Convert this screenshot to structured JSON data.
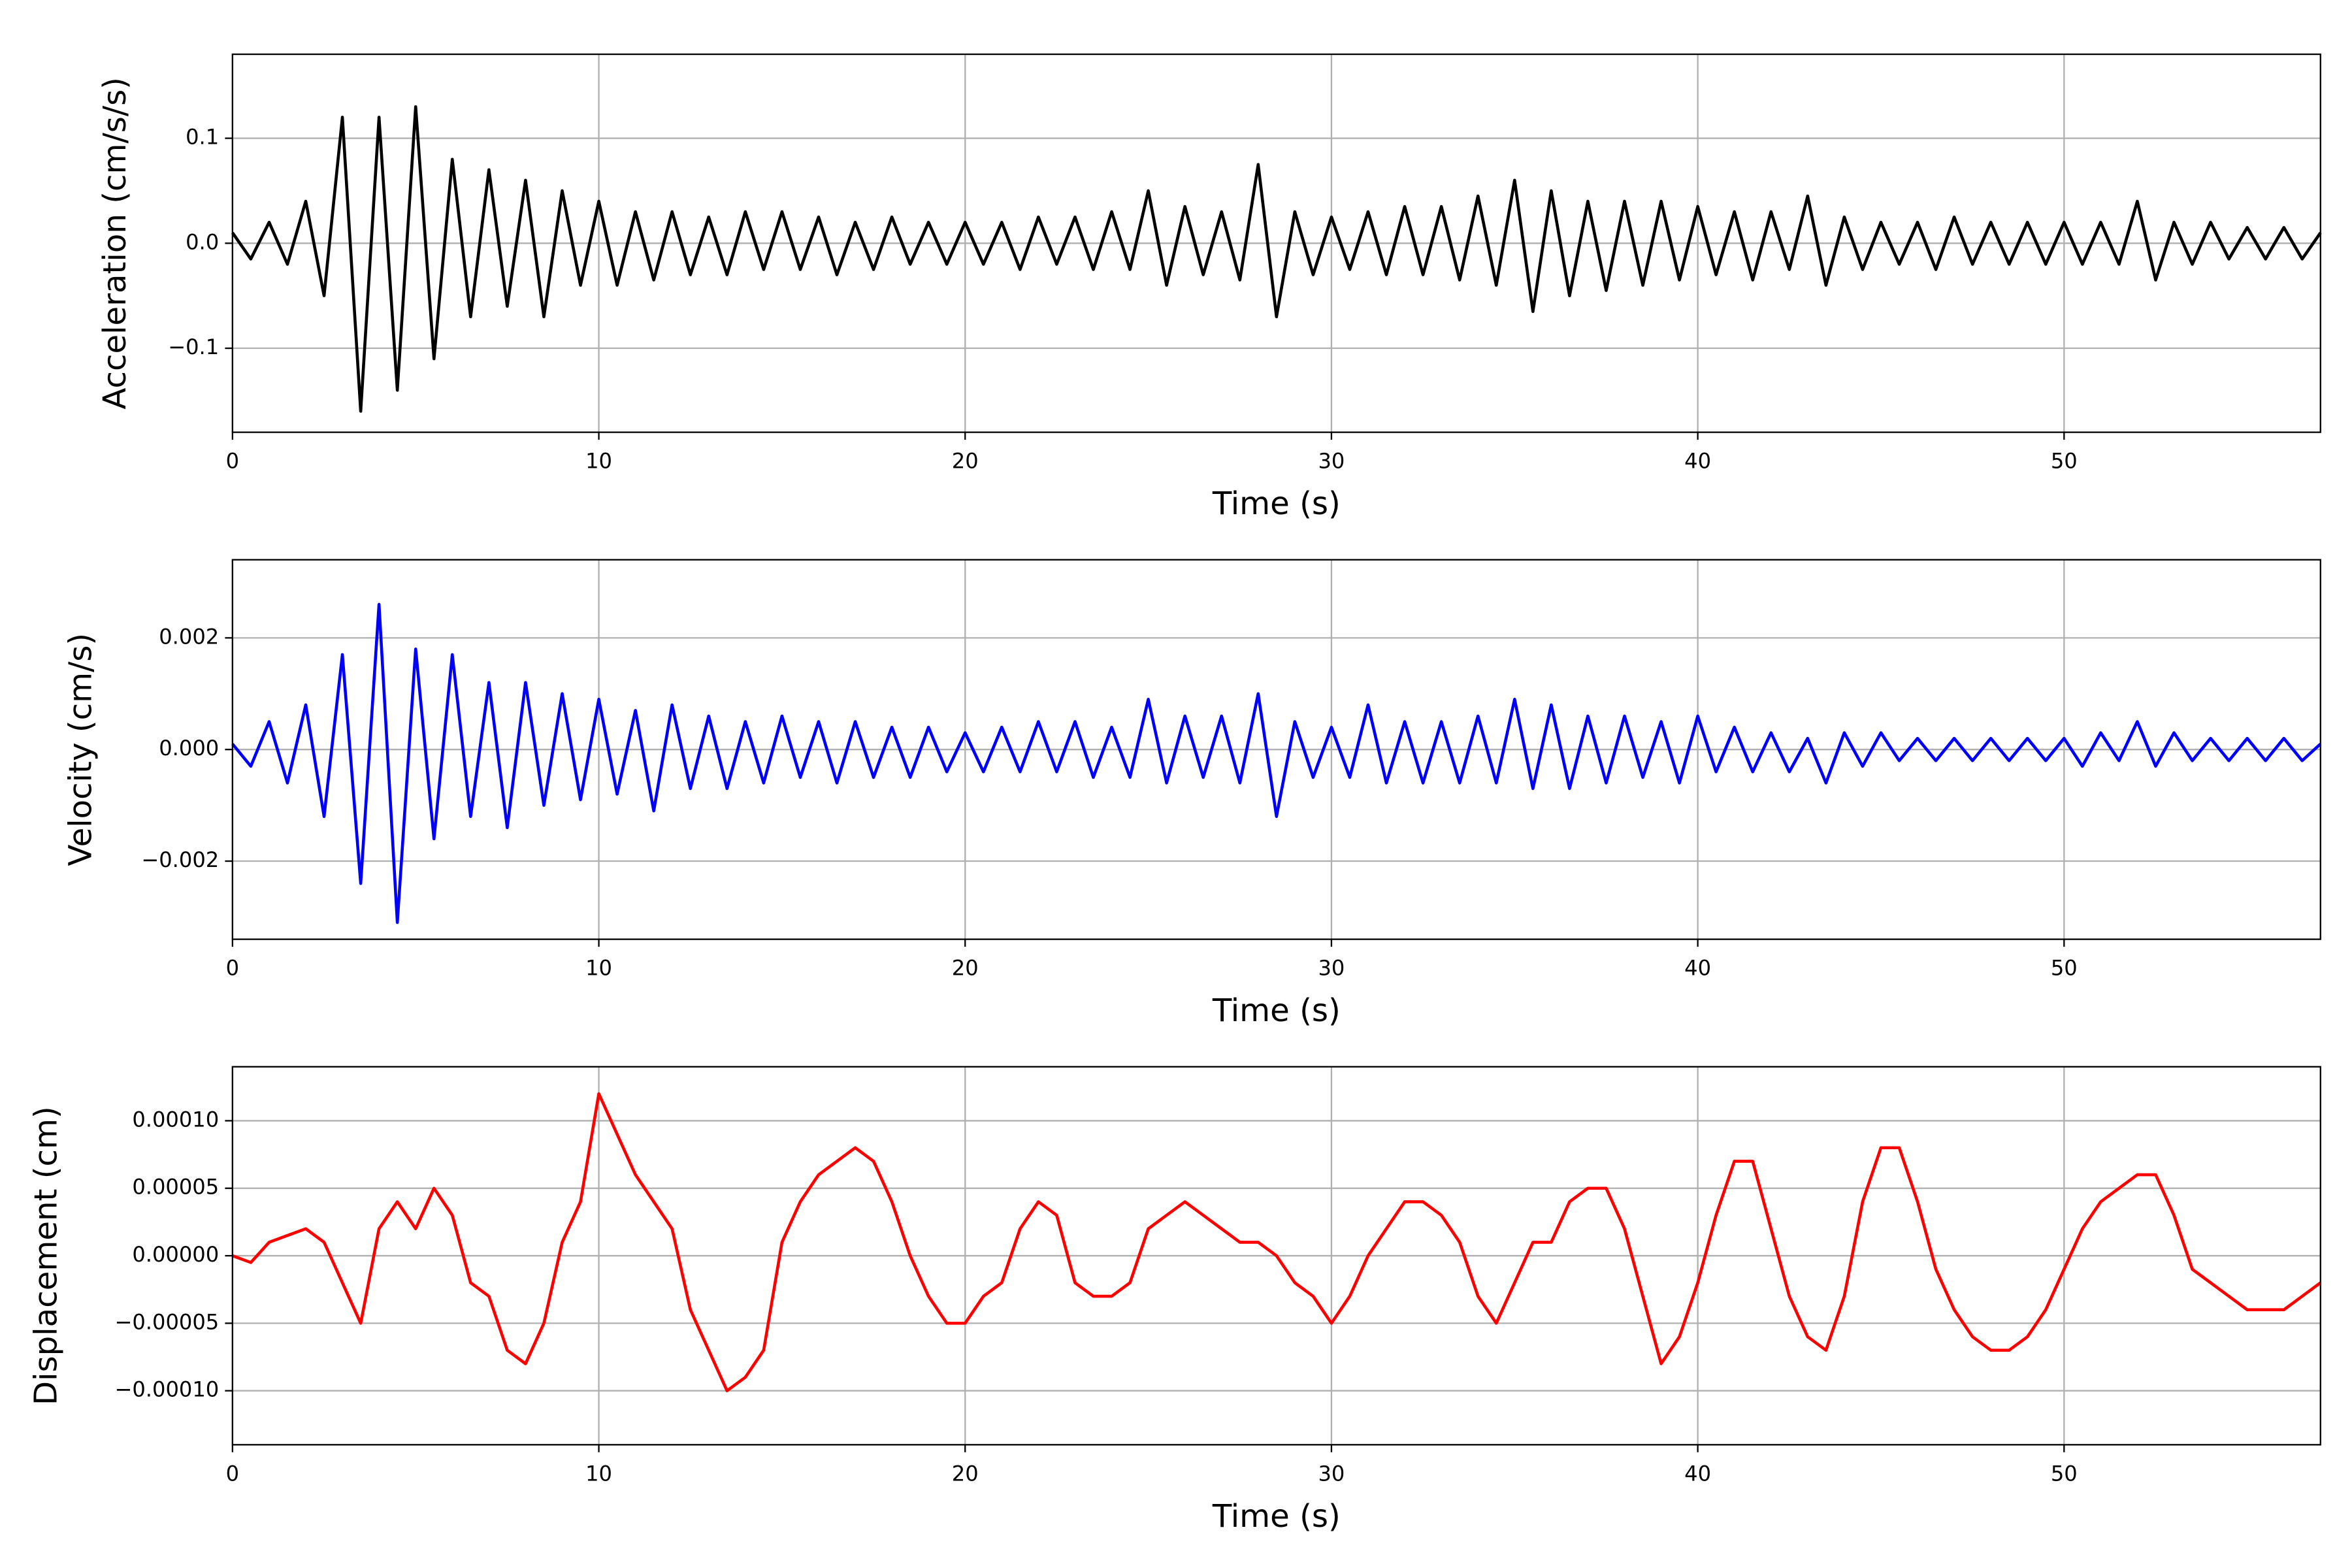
{
  "chart_data": [
    {
      "type": "line",
      "xlabel": "Time (s)",
      "ylabel": "Acceleration (cm/s/s)",
      "color": "#000000",
      "grid": true,
      "xlim": [
        0,
        57
      ],
      "ylim": [
        -0.18,
        0.18
      ],
      "xticks": [
        0,
        10,
        20,
        30,
        40,
        50
      ],
      "yticks": [
        {
          "value": -0.1,
          "label": "−0.1"
        },
        {
          "value": 0,
          "label": "0.0"
        },
        0.1
      ],
      "x": [
        0,
        0.5,
        1,
        1.5,
        2,
        2.5,
        3,
        3.5,
        4,
        4.5,
        5,
        5.5,
        6,
        6.5,
        7,
        7.5,
        8,
        8.5,
        9,
        9.5,
        10,
        10.5,
        11,
        11.5,
        12,
        12.5,
        13,
        13.5,
        14,
        14.5,
        15,
        15.5,
        16,
        16.5,
        17,
        17.5,
        18,
        18.5,
        19,
        19.5,
        20,
        20.5,
        21,
        21.5,
        22,
        22.5,
        23,
        23.5,
        24,
        24.5,
        25,
        25.5,
        26,
        26.5,
        27,
        27.5,
        28,
        28.5,
        29,
        29.5,
        30,
        30.5,
        31,
        31.5,
        32,
        32.5,
        33,
        33.5,
        34,
        34.5,
        35,
        35.5,
        36,
        36.5,
        37,
        37.5,
        38,
        38.5,
        39,
        39.5,
        40,
        40.5,
        41,
        41.5,
        42,
        42.5,
        43,
        43.5,
        44,
        44.5,
        45,
        45.5,
        46,
        46.5,
        47,
        47.5,
        48,
        48.5,
        49,
        49.5,
        50,
        50.5,
        51,
        51.5,
        52,
        52.5,
        53,
        53.5,
        54,
        54.5,
        55,
        55.5,
        56,
        56.5,
        57
      ],
      "values": [
        0.01,
        -0.015,
        0.02,
        -0.02,
        0.04,
        -0.05,
        0.12,
        -0.16,
        0.12,
        -0.14,
        0.13,
        -0.11,
        0.08,
        -0.07,
        0.07,
        -0.06,
        0.06,
        -0.07,
        0.05,
        -0.04,
        0.04,
        -0.04,
        0.03,
        -0.035,
        0.03,
        -0.03,
        0.025,
        -0.03,
        0.03,
        -0.025,
        0.03,
        -0.025,
        0.025,
        -0.03,
        0.02,
        -0.025,
        0.025,
        -0.02,
        0.02,
        -0.02,
        0.02,
        -0.02,
        0.02,
        -0.025,
        0.025,
        -0.02,
        0.025,
        -0.025,
        0.03,
        -0.025,
        0.05,
        -0.04,
        0.035,
        -0.03,
        0.03,
        -0.035,
        0.075,
        -0.07,
        0.03,
        -0.03,
        0.025,
        -0.025,
        0.03,
        -0.03,
        0.035,
        -0.03,
        0.035,
        -0.035,
        0.045,
        -0.04,
        0.06,
        -0.065,
        0.05,
        -0.05,
        0.04,
        -0.045,
        0.04,
        -0.04,
        0.04,
        -0.035,
        0.035,
        -0.03,
        0.03,
        -0.035,
        0.03,
        -0.025,
        0.045,
        -0.04,
        0.025,
        -0.025,
        0.02,
        -0.02,
        0.02,
        -0.025,
        0.025,
        -0.02,
        0.02,
        -0.02,
        0.02,
        -0.02,
        0.02,
        -0.02,
        0.02,
        -0.02,
        0.04,
        -0.035,
        0.02,
        -0.02,
        0.02,
        -0.015,
        0.015,
        -0.015,
        0.015,
        -0.015,
        0.01
      ]
    },
    {
      "type": "line",
      "xlabel": "Time (s)",
      "ylabel": "Velocity (cm/s)",
      "color": "#0000ff",
      "grid": true,
      "xlim": [
        0,
        57
      ],
      "ylim": [
        -0.0034,
        0.0034
      ],
      "xticks": [
        0,
        10,
        20,
        30,
        40,
        50
      ],
      "yticks": [
        {
          "value": -0.002,
          "label": "−0.002"
        },
        {
          "value": 0,
          "label": "0.000"
        },
        0.002
      ],
      "x": [
        0,
        0.5,
        1,
        1.5,
        2,
        2.5,
        3,
        3.5,
        4,
        4.5,
        5,
        5.5,
        6,
        6.5,
        7,
        7.5,
        8,
        8.5,
        9,
        9.5,
        10,
        10.5,
        11,
        11.5,
        12,
        12.5,
        13,
        13.5,
        14,
        14.5,
        15,
        15.5,
        16,
        16.5,
        17,
        17.5,
        18,
        18.5,
        19,
        19.5,
        20,
        20.5,
        21,
        21.5,
        22,
        22.5,
        23,
        23.5,
        24,
        24.5,
        25,
        25.5,
        26,
        26.5,
        27,
        27.5,
        28,
        28.5,
        29,
        29.5,
        30,
        30.5,
        31,
        31.5,
        32,
        32.5,
        33,
        33.5,
        34,
        34.5,
        35,
        35.5,
        36,
        36.5,
        37,
        37.5,
        38,
        38.5,
        39,
        39.5,
        40,
        40.5,
        41,
        41.5,
        42,
        42.5,
        43,
        43.5,
        44,
        44.5,
        45,
        45.5,
        46,
        46.5,
        47,
        47.5,
        48,
        48.5,
        49,
        49.5,
        50,
        50.5,
        51,
        51.5,
        52,
        52.5,
        53,
        53.5,
        54,
        54.5,
        55,
        55.5,
        56,
        56.5,
        57
      ],
      "values": [
        0.0001,
        -0.0003,
        0.0005,
        -0.0006,
        0.0008,
        -0.0012,
        0.0017,
        -0.0024,
        0.0026,
        -0.0031,
        0.0018,
        -0.0016,
        0.0017,
        -0.0012,
        0.0012,
        -0.0014,
        0.0012,
        -0.001,
        0.001,
        -0.0009,
        0.0009,
        -0.0008,
        0.0007,
        -0.0011,
        0.0008,
        -0.0007,
        0.0006,
        -0.0007,
        0.0005,
        -0.0006,
        0.0006,
        -0.0005,
        0.0005,
        -0.0006,
        0.0005,
        -0.0005,
        0.0004,
        -0.0005,
        0.0004,
        -0.0004,
        0.0003,
        -0.0004,
        0.0004,
        -0.0004,
        0.0005,
        -0.0004,
        0.0005,
        -0.0005,
        0.0004,
        -0.0005,
        0.0009,
        -0.0006,
        0.0006,
        -0.0005,
        0.0006,
        -0.0006,
        0.001,
        -0.0012,
        0.0005,
        -0.0005,
        0.0004,
        -0.0005,
        0.0008,
        -0.0006,
        0.0005,
        -0.0006,
        0.0005,
        -0.0006,
        0.0006,
        -0.0006,
        0.0009,
        -0.0007,
        0.0008,
        -0.0007,
        0.0006,
        -0.0006,
        0.0006,
        -0.0005,
        0.0005,
        -0.0006,
        0.0006,
        -0.0004,
        0.0004,
        -0.0004,
        0.0003,
        -0.0004,
        0.0002,
        -0.0006,
        0.0003,
        -0.0003,
        0.0003,
        -0.0002,
        0.0002,
        -0.0002,
        0.0002,
        -0.0002,
        0.0002,
        -0.0002,
        0.0002,
        -0.0002,
        0.0002,
        -0.0003,
        0.0003,
        -0.0002,
        0.0005,
        -0.0003,
        0.0003,
        -0.0002,
        0.0002,
        -0.0002,
        0.0002,
        -0.0002,
        0.0002,
        -0.0002,
        0.0001
      ]
    },
    {
      "type": "line",
      "xlabel": "Time (s)",
      "ylabel": "Displacement (cm)",
      "color": "#ff0000",
      "grid": true,
      "xlim": [
        0,
        57
      ],
      "ylim": [
        -0.00014,
        0.00014
      ],
      "xticks": [
        0,
        10,
        20,
        30,
        40,
        50
      ],
      "yticks": [
        {
          "value": -0.0001,
          "label": "−0.00010"
        },
        {
          "value": -5e-05,
          "label": "−0.00005"
        },
        {
          "value": 0,
          "label": "0.00000"
        },
        {
          "value": 5e-05,
          "label": "0.00005"
        },
        {
          "value": 0.0001,
          "label": "0.00010"
        }
      ],
      "x": [
        0,
        0.5,
        1,
        1.5,
        2,
        2.5,
        3,
        3.5,
        4,
        4.5,
        5,
        5.5,
        6,
        6.5,
        7,
        7.5,
        8,
        8.5,
        9,
        9.5,
        10,
        10.5,
        11,
        11.5,
        12,
        12.5,
        13,
        13.5,
        14,
        14.5,
        15,
        15.5,
        16,
        16.5,
        17,
        17.5,
        18,
        18.5,
        19,
        19.5,
        20,
        20.5,
        21,
        21.5,
        22,
        22.5,
        23,
        23.5,
        24,
        24.5,
        25,
        25.5,
        26,
        26.5,
        27,
        27.5,
        28,
        28.5,
        29,
        29.5,
        30,
        30.5,
        31,
        31.5,
        32,
        32.5,
        33,
        33.5,
        34,
        34.5,
        35,
        35.5,
        36,
        36.5,
        37,
        37.5,
        38,
        38.5,
        39,
        39.5,
        40,
        40.5,
        41,
        41.5,
        42,
        42.5,
        43,
        43.5,
        44,
        44.5,
        45,
        45.5,
        46,
        46.5,
        47,
        47.5,
        48,
        48.5,
        49,
        49.5,
        50,
        50.5,
        51,
        51.5,
        52,
        52.5,
        53,
        53.5,
        54,
        54.5,
        55,
        55.5,
        56,
        56.5,
        57
      ],
      "values": [
        0,
        -5e-06,
        1e-05,
        1.5e-05,
        2e-05,
        1e-05,
        -2e-05,
        -5e-05,
        2e-05,
        4e-05,
        2e-05,
        5e-05,
        3e-05,
        -2e-05,
        -3e-05,
        -7e-05,
        -8e-05,
        -5e-05,
        1e-05,
        4e-05,
        0.00012,
        9e-05,
        6e-05,
        4e-05,
        2e-05,
        -4e-05,
        -7e-05,
        -0.0001,
        -9e-05,
        -7e-05,
        1e-05,
        4e-05,
        6e-05,
        7e-05,
        8e-05,
        7e-05,
        4e-05,
        0,
        -3e-05,
        -5e-05,
        -5e-05,
        -3e-05,
        -2e-05,
        2e-05,
        4e-05,
        3e-05,
        -2e-05,
        -3e-05,
        -3e-05,
        -2e-05,
        2e-05,
        3e-05,
        4e-05,
        3e-05,
        2e-05,
        1e-05,
        1e-05,
        0,
        -2e-05,
        -3e-05,
        -5e-05,
        -3e-05,
        0,
        2e-05,
        4e-05,
        4e-05,
        3e-05,
        1e-05,
        -3e-05,
        -5e-05,
        -2e-05,
        1e-05,
        1e-05,
        4e-05,
        5e-05,
        5e-05,
        2e-05,
        -3e-05,
        -8e-05,
        -6e-05,
        -2e-05,
        3e-05,
        7e-05,
        7e-05,
        2e-05,
        -3e-05,
        -6e-05,
        -7e-05,
        -3e-05,
        4e-05,
        8e-05,
        8e-05,
        4e-05,
        -1e-05,
        -4e-05,
        -6e-05,
        -7e-05,
        -7e-05,
        -6e-05,
        -4e-05,
        -1e-05,
        2e-05,
        4e-05,
        5e-05,
        6e-05,
        6e-05,
        3e-05,
        -1e-05,
        -2e-05,
        -3e-05,
        -4e-05,
        -4e-05,
        -4e-05,
        -3e-05,
        -2e-05
      ]
    }
  ]
}
